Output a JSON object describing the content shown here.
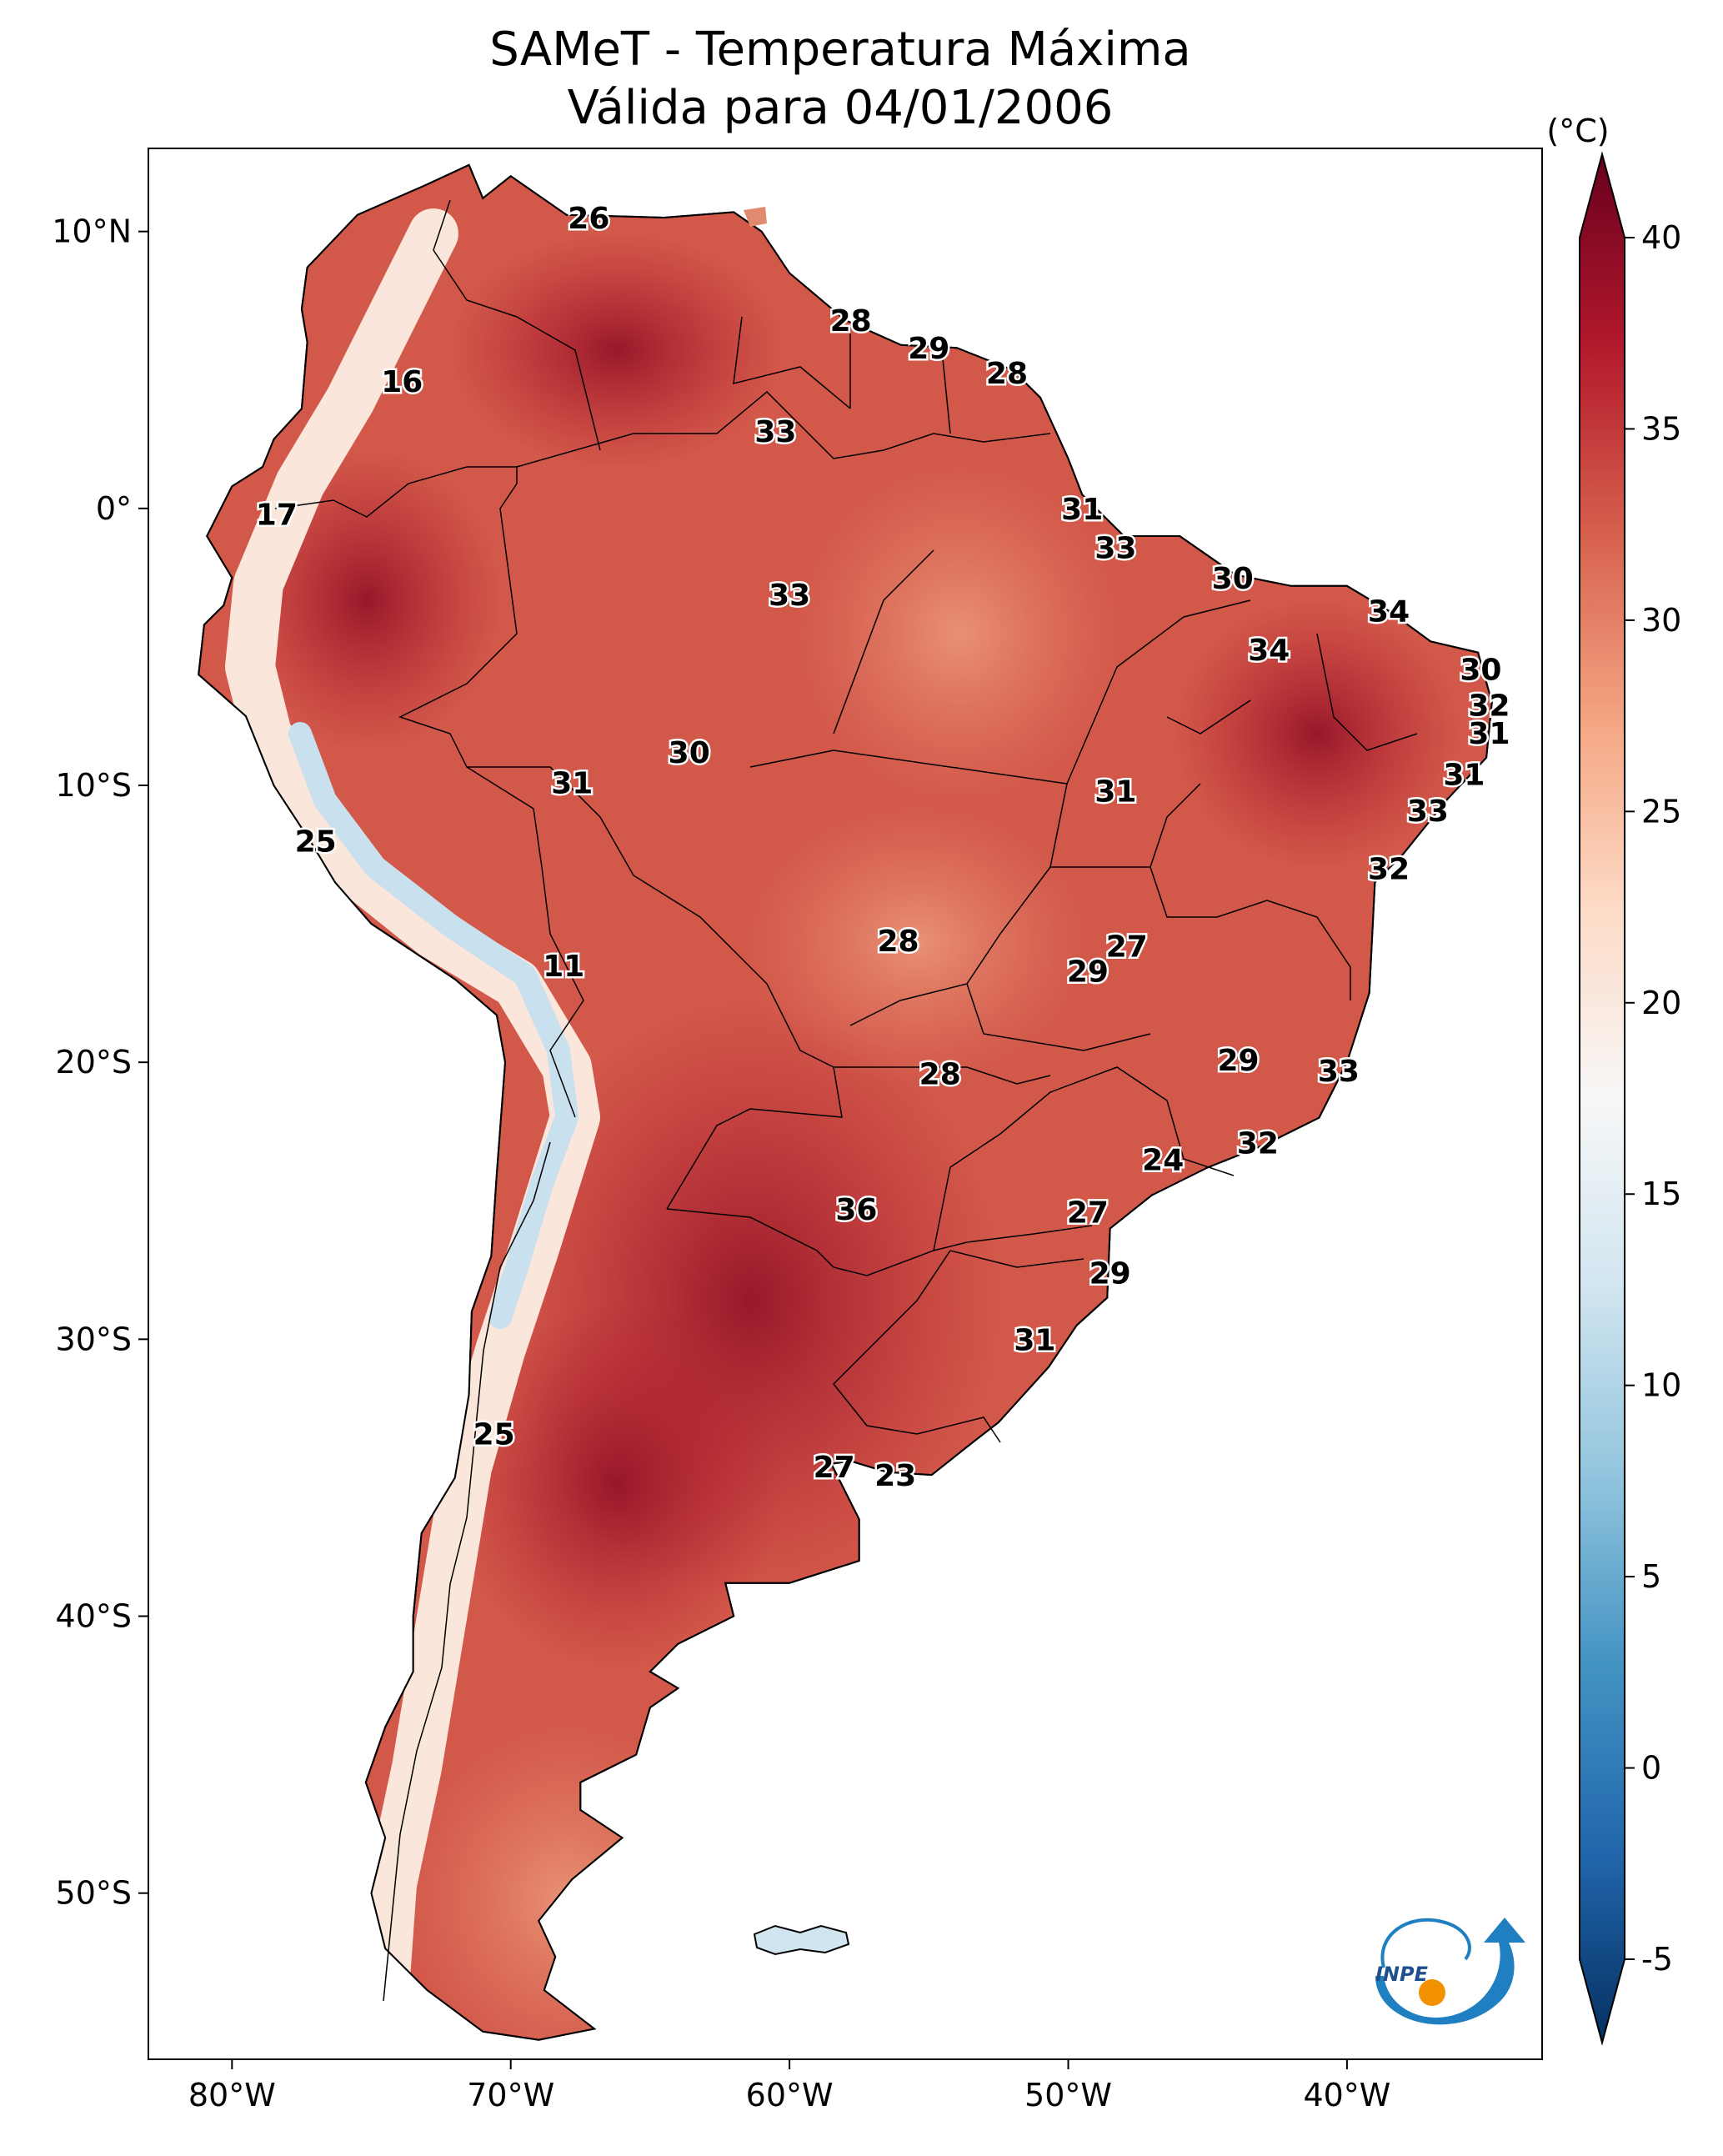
{
  "chart_data": {
    "type": "map",
    "title_line1": "SAMeT - Temperatura Máxima",
    "title_line2": "Válida para 04/01/2006",
    "colorbar": {
      "unit": "(°C)",
      "min": -5,
      "max": 40,
      "ticks": [
        "40",
        "35",
        "30",
        "25",
        "20",
        "15",
        "10",
        "5",
        "0",
        "-5"
      ],
      "tick_values": [
        40,
        35,
        30,
        25,
        20,
        15,
        10,
        5,
        0,
        -5
      ],
      "colors": [
        "#053061",
        "#2166ac",
        "#4393c3",
        "#92c5de",
        "#d1e5f0",
        "#f7f7f7",
        "#fddbc7",
        "#f4a582",
        "#d6604d",
        "#b2182b",
        "#67001f"
      ]
    },
    "lon_ticks": [
      "80°W",
      "70°W",
      "60°W",
      "50°W",
      "40°W"
    ],
    "lon_values": [
      -80,
      -70,
      -60,
      -50,
      -40
    ],
    "lat_ticks": [
      "10°N",
      "0°",
      "10°S",
      "20°S",
      "30°S",
      "40°S",
      "50°S"
    ],
    "lat_values": [
      10,
      0,
      -10,
      -20,
      -30,
      -40,
      -50
    ],
    "extent": {
      "lon_min": -83,
      "lon_max": -33,
      "lat_min": -56,
      "lat_max": 13
    },
    "stations": [
      {
        "lon": -67.2,
        "lat": 10.5,
        "value": "26"
      },
      {
        "lon": -57.8,
        "lat": 6.8,
        "value": "28"
      },
      {
        "lon": -55.0,
        "lat": 5.8,
        "value": "29"
      },
      {
        "lon": -52.2,
        "lat": 4.9,
        "value": "28"
      },
      {
        "lon": -73.9,
        "lat": 4.6,
        "value": "16"
      },
      {
        "lon": -60.5,
        "lat": 2.8,
        "value": "33"
      },
      {
        "lon": -78.4,
        "lat": -0.2,
        "value": "17"
      },
      {
        "lon": -49.5,
        "lat": 0.0,
        "value": "31"
      },
      {
        "lon": -48.3,
        "lat": -1.4,
        "value": "33"
      },
      {
        "lon": -44.1,
        "lat": -2.5,
        "value": "30"
      },
      {
        "lon": -38.5,
        "lat": -3.7,
        "value": "34"
      },
      {
        "lon": -60.0,
        "lat": -3.1,
        "value": "33"
      },
      {
        "lon": -42.8,
        "lat": -5.1,
        "value": "34"
      },
      {
        "lon": -35.2,
        "lat": -5.8,
        "value": "30"
      },
      {
        "lon": -34.9,
        "lat": -7.1,
        "value": "32"
      },
      {
        "lon": -34.9,
        "lat": -8.1,
        "value": "31"
      },
      {
        "lon": -63.6,
        "lat": -8.8,
        "value": "30"
      },
      {
        "lon": -67.8,
        "lat": -9.9,
        "value": "31"
      },
      {
        "lon": -48.3,
        "lat": -10.2,
        "value": "31"
      },
      {
        "lon": -35.8,
        "lat": -9.6,
        "value": "31"
      },
      {
        "lon": -37.1,
        "lat": -10.9,
        "value": "33"
      },
      {
        "lon": -77.0,
        "lat": -12.0,
        "value": "25"
      },
      {
        "lon": -38.5,
        "lat": -13.0,
        "value": "32"
      },
      {
        "lon": -56.1,
        "lat": -15.6,
        "value": "28"
      },
      {
        "lon": -47.9,
        "lat": -15.8,
        "value": "27"
      },
      {
        "lon": -49.3,
        "lat": -16.7,
        "value": "29"
      },
      {
        "lon": -68.1,
        "lat": -16.5,
        "value": "11"
      },
      {
        "lon": -43.9,
        "lat": -19.9,
        "value": "29"
      },
      {
        "lon": -40.3,
        "lat": -20.3,
        "value": "33"
      },
      {
        "lon": -54.6,
        "lat": -20.4,
        "value": "28"
      },
      {
        "lon": -43.2,
        "lat": -22.9,
        "value": "32"
      },
      {
        "lon": -46.6,
        "lat": -23.5,
        "value": "24"
      },
      {
        "lon": -57.6,
        "lat": -25.3,
        "value": "36"
      },
      {
        "lon": -49.3,
        "lat": -25.4,
        "value": "27"
      },
      {
        "lon": -48.5,
        "lat": -27.6,
        "value": "29"
      },
      {
        "lon": -51.2,
        "lat": -30.0,
        "value": "31"
      },
      {
        "lon": -70.6,
        "lat": -33.4,
        "value": "25"
      },
      {
        "lon": -58.4,
        "lat": -34.6,
        "value": "27"
      },
      {
        "lon": -56.2,
        "lat": -34.9,
        "value": "23"
      }
    ]
  },
  "logo": {
    "text": "INPE"
  }
}
